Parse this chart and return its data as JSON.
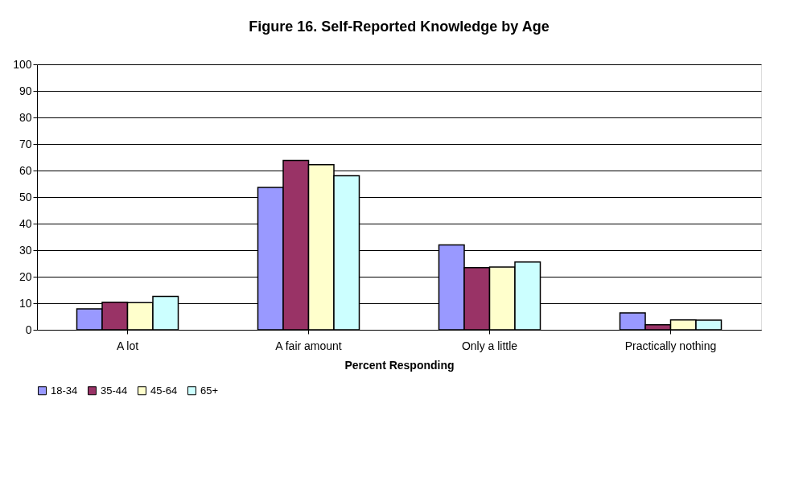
{
  "chart_data": {
    "type": "bar",
    "title": "Figure 16. Self-Reported Knowledge by Age",
    "xlabel": "Percent Responding",
    "categories": [
      "A lot",
      "A fair amount",
      "Only a little",
      "Practically nothing"
    ],
    "series": [
      {
        "name": "18-34",
        "color": "#9999ff",
        "values": [
          7.9,
          53.6,
          32.0,
          6.4
        ]
      },
      {
        "name": "35-44",
        "color": "#993366",
        "values": [
          10.4,
          63.8,
          23.4,
          1.9
        ]
      },
      {
        "name": "45-64",
        "color": "#ffffcc",
        "values": [
          10.2,
          62.2,
          23.6,
          3.7
        ]
      },
      {
        "name": "65+",
        "color": "#ccffff",
        "values": [
          12.6,
          58.0,
          25.5,
          3.6
        ]
      }
    ],
    "ylim": [
      0,
      100
    ],
    "yticks": [
      0,
      10,
      20,
      30,
      40,
      50,
      60,
      70,
      80,
      90,
      100
    ],
    "grid": "y",
    "legend": "bottom"
  }
}
